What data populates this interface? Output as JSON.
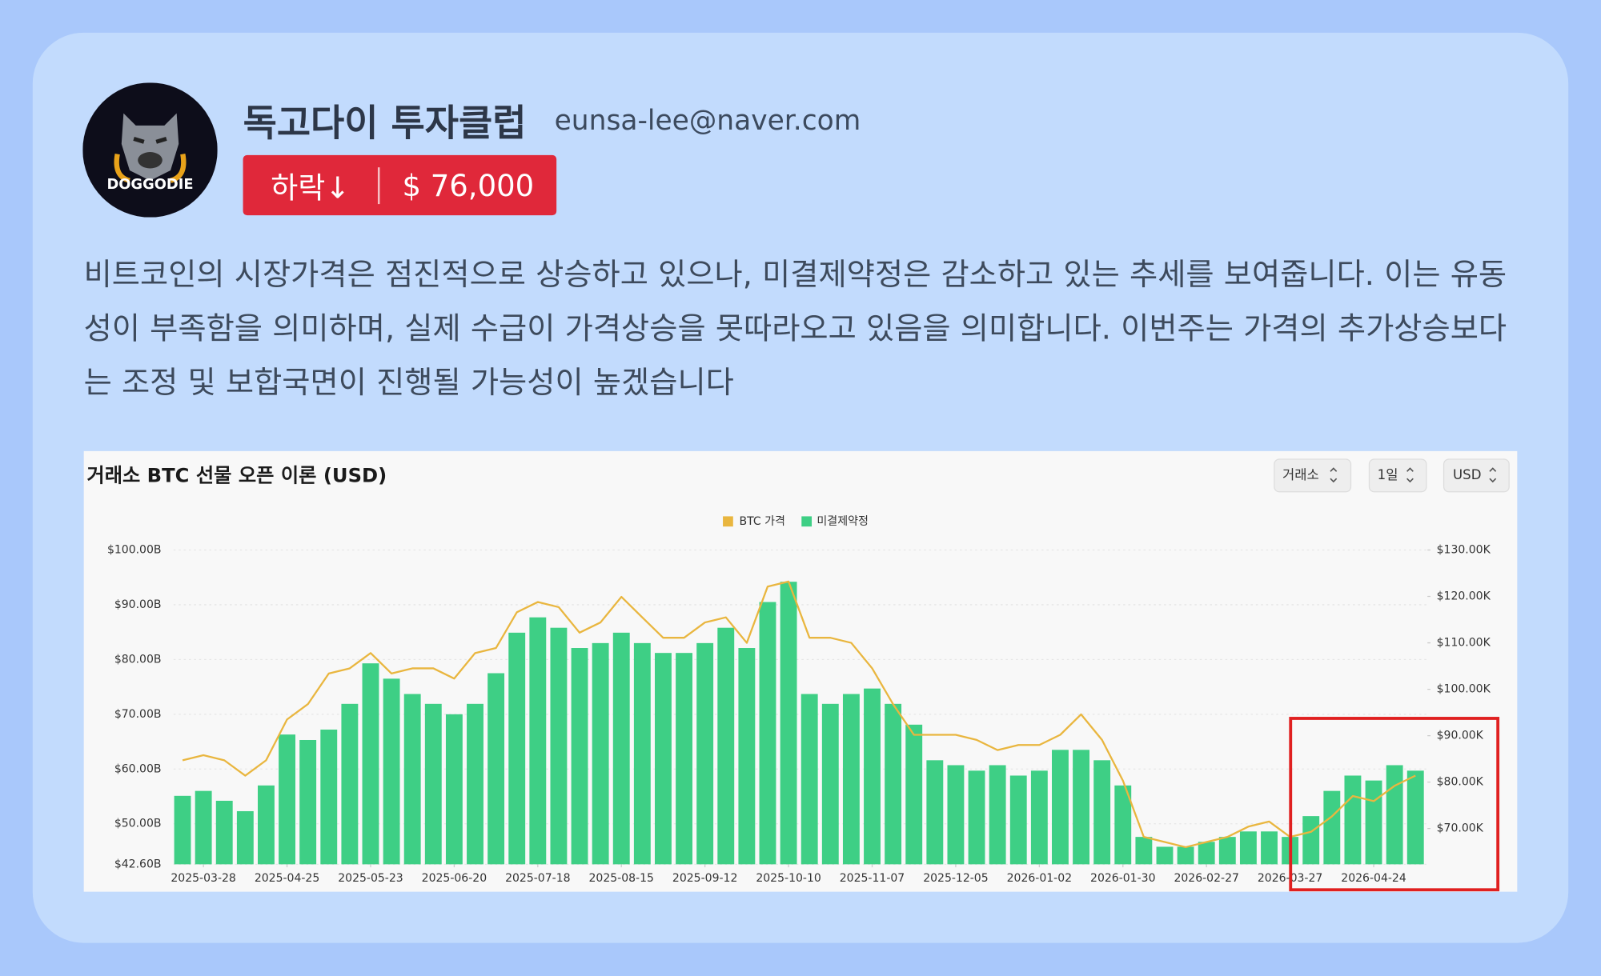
{
  "header": {
    "name": "독고다이 투자클럽",
    "email": "eunsa-lee@naver.com",
    "avatar_text": "DOGGODIE"
  },
  "badge": {
    "direction": "하락↓",
    "price": "$ 76,000"
  },
  "description": "비트코인의 시장가격은 점진적으로 상승하고 있으나, 미결제약정은 감소하고 있는 추세를 보여줍니다. 이는 유동성이 부족함을 의미하며, 실제 수급이 가격상승을 못따라오고 있음을 의미합니다. 이번주는 가격의 추가상승보다는 조정 및 보합국면이 진행될 가능성이 높겠습니다",
  "chart_data": {
    "type": "combo",
    "title": "거래소 BTC 선물 오픈 이론 (USD)",
    "controls": [
      "거래소",
      "1일",
      "USD"
    ],
    "x": [
      "2025-03-21",
      "2025-03-28",
      "2025-04-04",
      "2025-04-11",
      "2025-04-18",
      "2025-04-25",
      "2025-05-02",
      "2025-05-09",
      "2025-05-16",
      "2025-05-23",
      "2025-05-30",
      "2025-06-06",
      "2025-06-13",
      "2025-06-20",
      "2025-06-27",
      "2025-07-04",
      "2025-07-11",
      "2025-07-18",
      "2025-07-25",
      "2025-08-01",
      "2025-08-08",
      "2025-08-15",
      "2025-08-22",
      "2025-08-29",
      "2025-09-05",
      "2025-09-12",
      "2025-09-19",
      "2025-09-26",
      "2025-10-03",
      "2025-10-10",
      "2025-10-17",
      "2025-10-24",
      "2025-10-31",
      "2025-11-07",
      "2025-11-14",
      "2025-11-21",
      "2025-11-28",
      "2025-12-05",
      "2025-12-12",
      "2025-12-19",
      "2025-12-26",
      "2026-01-02",
      "2026-01-09",
      "2026-01-16",
      "2026-01-23",
      "2026-01-30",
      "2026-02-06",
      "2026-02-13",
      "2026-02-20",
      "2026-02-27",
      "2026-03-06",
      "2026-03-13",
      "2026-03-20",
      "2026-03-27",
      "2026-04-03",
      "2026-04-10",
      "2026-04-17",
      "2026-04-24",
      "2026-05-01",
      "2026-05-08"
    ],
    "series": [
      {
        "name": "BTC 가격",
        "type": "line",
        "axis": "y2",
        "color": "#e9b63f",
        "values": [
          84700,
          85800,
          84700,
          81400,
          84700,
          93500,
          96800,
          103400,
          104500,
          107800,
          103400,
          104500,
          104500,
          102300,
          107800,
          108900,
          116600,
          118800,
          117700,
          112200,
          114400,
          119900,
          115500,
          111100,
          111100,
          114400,
          115500,
          110000,
          122100,
          123200,
          111100,
          111100,
          110000,
          104500,
          96800,
          90200,
          90200,
          90200,
          89100,
          86900,
          88000,
          88000,
          90200,
          94600,
          89100,
          80300,
          68200,
          67100,
          66000,
          67100,
          68200,
          70400,
          71500,
          68200,
          69300,
          72600,
          77000,
          75900,
          79200,
          81400
        ]
      },
      {
        "name": "미결제약정",
        "type": "bar",
        "color": "#3ecf85",
        "values": [
          55.1,
          56,
          54.2,
          52.3,
          57,
          66.3,
          65.3,
          67.2,
          71.9,
          79.3,
          76.5,
          73.7,
          71.9,
          70,
          71.9,
          77.5,
          84.9,
          87.7,
          85.8,
          82.1,
          83,
          84.9,
          83,
          81.2,
          81.2,
          83,
          85.8,
          82.1,
          90.5,
          94.2,
          73.7,
          71.9,
          73.7,
          74.7,
          71.9,
          68.1,
          61.6,
          60.7,
          59.7,
          60.7,
          58.8,
          59.7,
          63.5,
          63.5,
          61.6,
          57,
          47.6,
          45.8,
          45.8,
          46.7,
          47.6,
          48.6,
          48.6,
          47.6,
          51.4,
          56,
          58.8,
          57.9,
          60.7,
          59.7
        ]
      }
    ],
    "xlim": [
      "2025-03-18",
      "2026-05-12"
    ],
    "xticks": [
      "2025-03-28",
      "2025-04-25",
      "2025-05-23",
      "2025-06-20",
      "2025-07-18",
      "2025-08-15",
      "2025-09-12",
      "2025-10-10",
      "2025-11-07",
      "2025-12-05",
      "2026-01-02",
      "2026-01-30",
      "2026-02-27",
      "2026-03-27",
      "2026-04-24"
    ],
    "ylim": [
      42.6,
      100
    ],
    "yticks": [
      {
        "value": 42.6,
        "label": "$42.60B"
      },
      {
        "value": 50,
        "label": "$50.00B"
      },
      {
        "value": 60,
        "label": "$60.00B"
      },
      {
        "value": 70,
        "label": "$70.00B"
      },
      {
        "value": 80,
        "label": "$80.00B"
      },
      {
        "value": 90,
        "label": "$90.00B"
      },
      {
        "value": 100,
        "label": "$100.00B"
      }
    ],
    "y2lim": [
      62300,
      130000
    ],
    "y2ticks": [
      {
        "value": 70000,
        "label": "$70.00K"
      },
      {
        "value": 80000,
        "label": "$80.00K"
      },
      {
        "value": 90000,
        "label": "$90.00K"
      },
      {
        "value": 100000,
        "label": "$100.00K"
      },
      {
        "value": 110000,
        "label": "$110.00K"
      },
      {
        "value": 120000,
        "label": "$120.00K"
      },
      {
        "value": 130000,
        "label": "$130.00K"
      }
    ],
    "grid": true
  }
}
